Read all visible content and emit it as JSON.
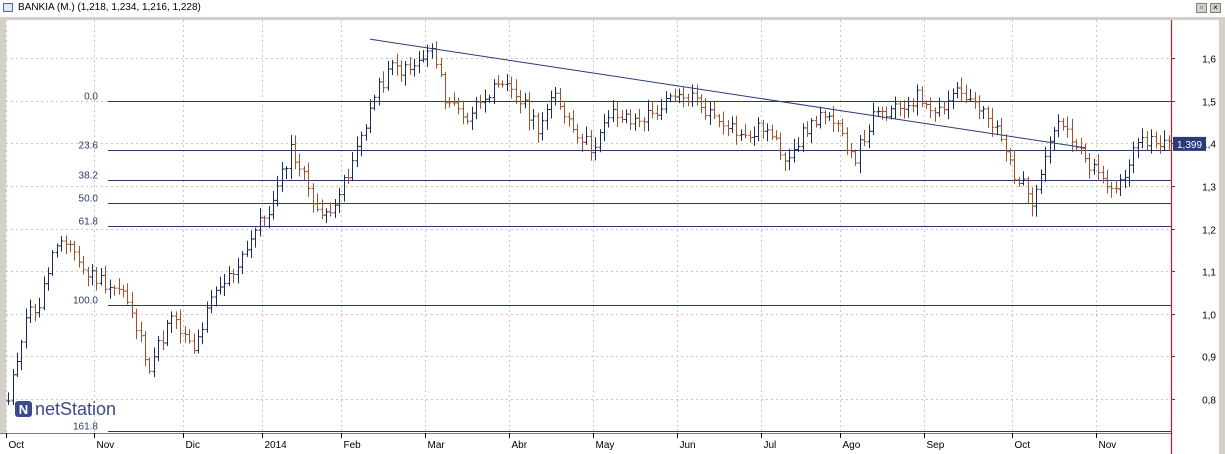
{
  "window": {
    "title": "BANKIA (M.) (1,218, 1,234, 1,216, 1,228)",
    "restore_glyph": "▫",
    "close_glyph": "×"
  },
  "logo": {
    "text": "netStation",
    "mark": "N"
  },
  "colors": {
    "up": "#1c2a5a",
    "down": "#a0522d",
    "trend": "#2a3a7a",
    "fib": "#2a3a6a",
    "last_price_bg": "#2a3a7a",
    "right_border": "#b22222"
  },
  "chart_data": {
    "type": "ohlc-bar",
    "title": "",
    "ylim": [
      0.72,
      1.69
    ],
    "y_ticks": [
      "0,8",
      "0,9",
      "1,0",
      "1,1",
      "1,2",
      "1,3",
      "1,4",
      "1,5",
      "1,6"
    ],
    "y_tick_values": [
      0.8,
      0.9,
      1.0,
      1.1,
      1.2,
      1.3,
      1.4,
      1.5,
      1.6
    ],
    "x_ticks": [
      "Oct",
      "Nov",
      "Dic",
      "2014",
      "Feb",
      "Mar",
      "Abr",
      "May",
      "Jun",
      "Jul",
      "Ago",
      "Sep",
      "Oct",
      "Nov"
    ],
    "x_tick_index": [
      0,
      20,
      40,
      58,
      76,
      95,
      114,
      133,
      152,
      171,
      189,
      208,
      228,
      247
    ],
    "last_price": {
      "label": "1,399",
      "value": 1.399
    },
    "fibonacci": [
      {
        "label": "0.0",
        "value": 1.5
      },
      {
        "label": "23.6",
        "value": 1.385
      },
      {
        "label": "38.2",
        "value": 1.315
      },
      {
        "label": "50.0",
        "value": 1.26
      },
      {
        "label": "61.8",
        "value": 1.205
      },
      {
        "label": "100.0",
        "value": 1.02
      },
      {
        "label": "161.8",
        "value": 0.725
      }
    ],
    "trendline": {
      "from": {
        "index": 82,
        "value": 1.645
      },
      "to": {
        "index": 244,
        "value": 1.39
      }
    },
    "anchors": [
      [
        0,
        0.79
      ],
      [
        4,
        1.0
      ],
      [
        7,
        1.02
      ],
      [
        10,
        1.14
      ],
      [
        14,
        1.17
      ],
      [
        17,
        1.1
      ],
      [
        21,
        1.08
      ],
      [
        26,
        1.05
      ],
      [
        32,
        0.88
      ],
      [
        37,
        0.99
      ],
      [
        42,
        0.91
      ],
      [
        46,
        1.03
      ],
      [
        51,
        1.1
      ],
      [
        55,
        1.18
      ],
      [
        60,
        1.26
      ],
      [
        64,
        1.39
      ],
      [
        68,
        1.3
      ],
      [
        71,
        1.22
      ],
      [
        77,
        1.32
      ],
      [
        80,
        1.42
      ],
      [
        83,
        1.51
      ],
      [
        87,
        1.58
      ],
      [
        91,
        1.57
      ],
      [
        96,
        1.62
      ],
      [
        99,
        1.51
      ],
      [
        104,
        1.46
      ],
      [
        108,
        1.52
      ],
      [
        114,
        1.53
      ],
      [
        120,
        1.44
      ],
      [
        124,
        1.51
      ],
      [
        128,
        1.44
      ],
      [
        132,
        1.39
      ],
      [
        137,
        1.47
      ],
      [
        141,
        1.45
      ],
      [
        146,
        1.47
      ],
      [
        150,
        1.5
      ],
      [
        155,
        1.51
      ],
      [
        159,
        1.47
      ],
      [
        163,
        1.45
      ],
      [
        167,
        1.41
      ],
      [
        171,
        1.44
      ],
      [
        176,
        1.37
      ],
      [
        180,
        1.42
      ],
      [
        184,
        1.47
      ],
      [
        188,
        1.43
      ],
      [
        192,
        1.37
      ],
      [
        196,
        1.46
      ],
      [
        202,
        1.48
      ],
      [
        206,
        1.51
      ],
      [
        211,
        1.48
      ],
      [
        215,
        1.53
      ],
      [
        219,
        1.49
      ],
      [
        224,
        1.43
      ],
      [
        228,
        1.33
      ],
      [
        232,
        1.27
      ],
      [
        235,
        1.38
      ],
      [
        238,
        1.46
      ],
      [
        241,
        1.4
      ],
      [
        244,
        1.36
      ],
      [
        248,
        1.31
      ],
      [
        251,
        1.29
      ],
      [
        254,
        1.36
      ],
      [
        258,
        1.41
      ],
      [
        263,
        1.4
      ]
    ]
  }
}
